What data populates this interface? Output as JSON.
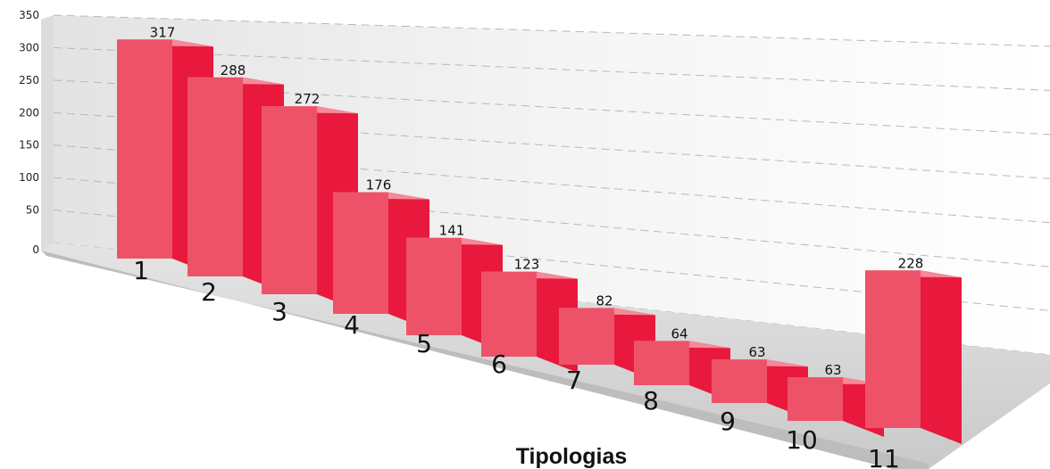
{
  "chart_data": {
    "type": "bar",
    "title": "",
    "xlabel": "Tipologias",
    "ylabel": "",
    "ylim": [
      0,
      350
    ],
    "yticks": [
      0,
      50,
      100,
      150,
      200,
      250,
      300,
      350
    ],
    "grid": true,
    "categories": [
      "1",
      "2",
      "3",
      "4",
      "5",
      "6",
      "7",
      "8",
      "9",
      "10",
      "11"
    ],
    "values": [
      317,
      288,
      272,
      176,
      141,
      123,
      82,
      64,
      63,
      63,
      228
    ],
    "bar_color": "#EE5268",
    "bar_side_color": "#E8193C",
    "bar_top_color": "#F48A99"
  }
}
